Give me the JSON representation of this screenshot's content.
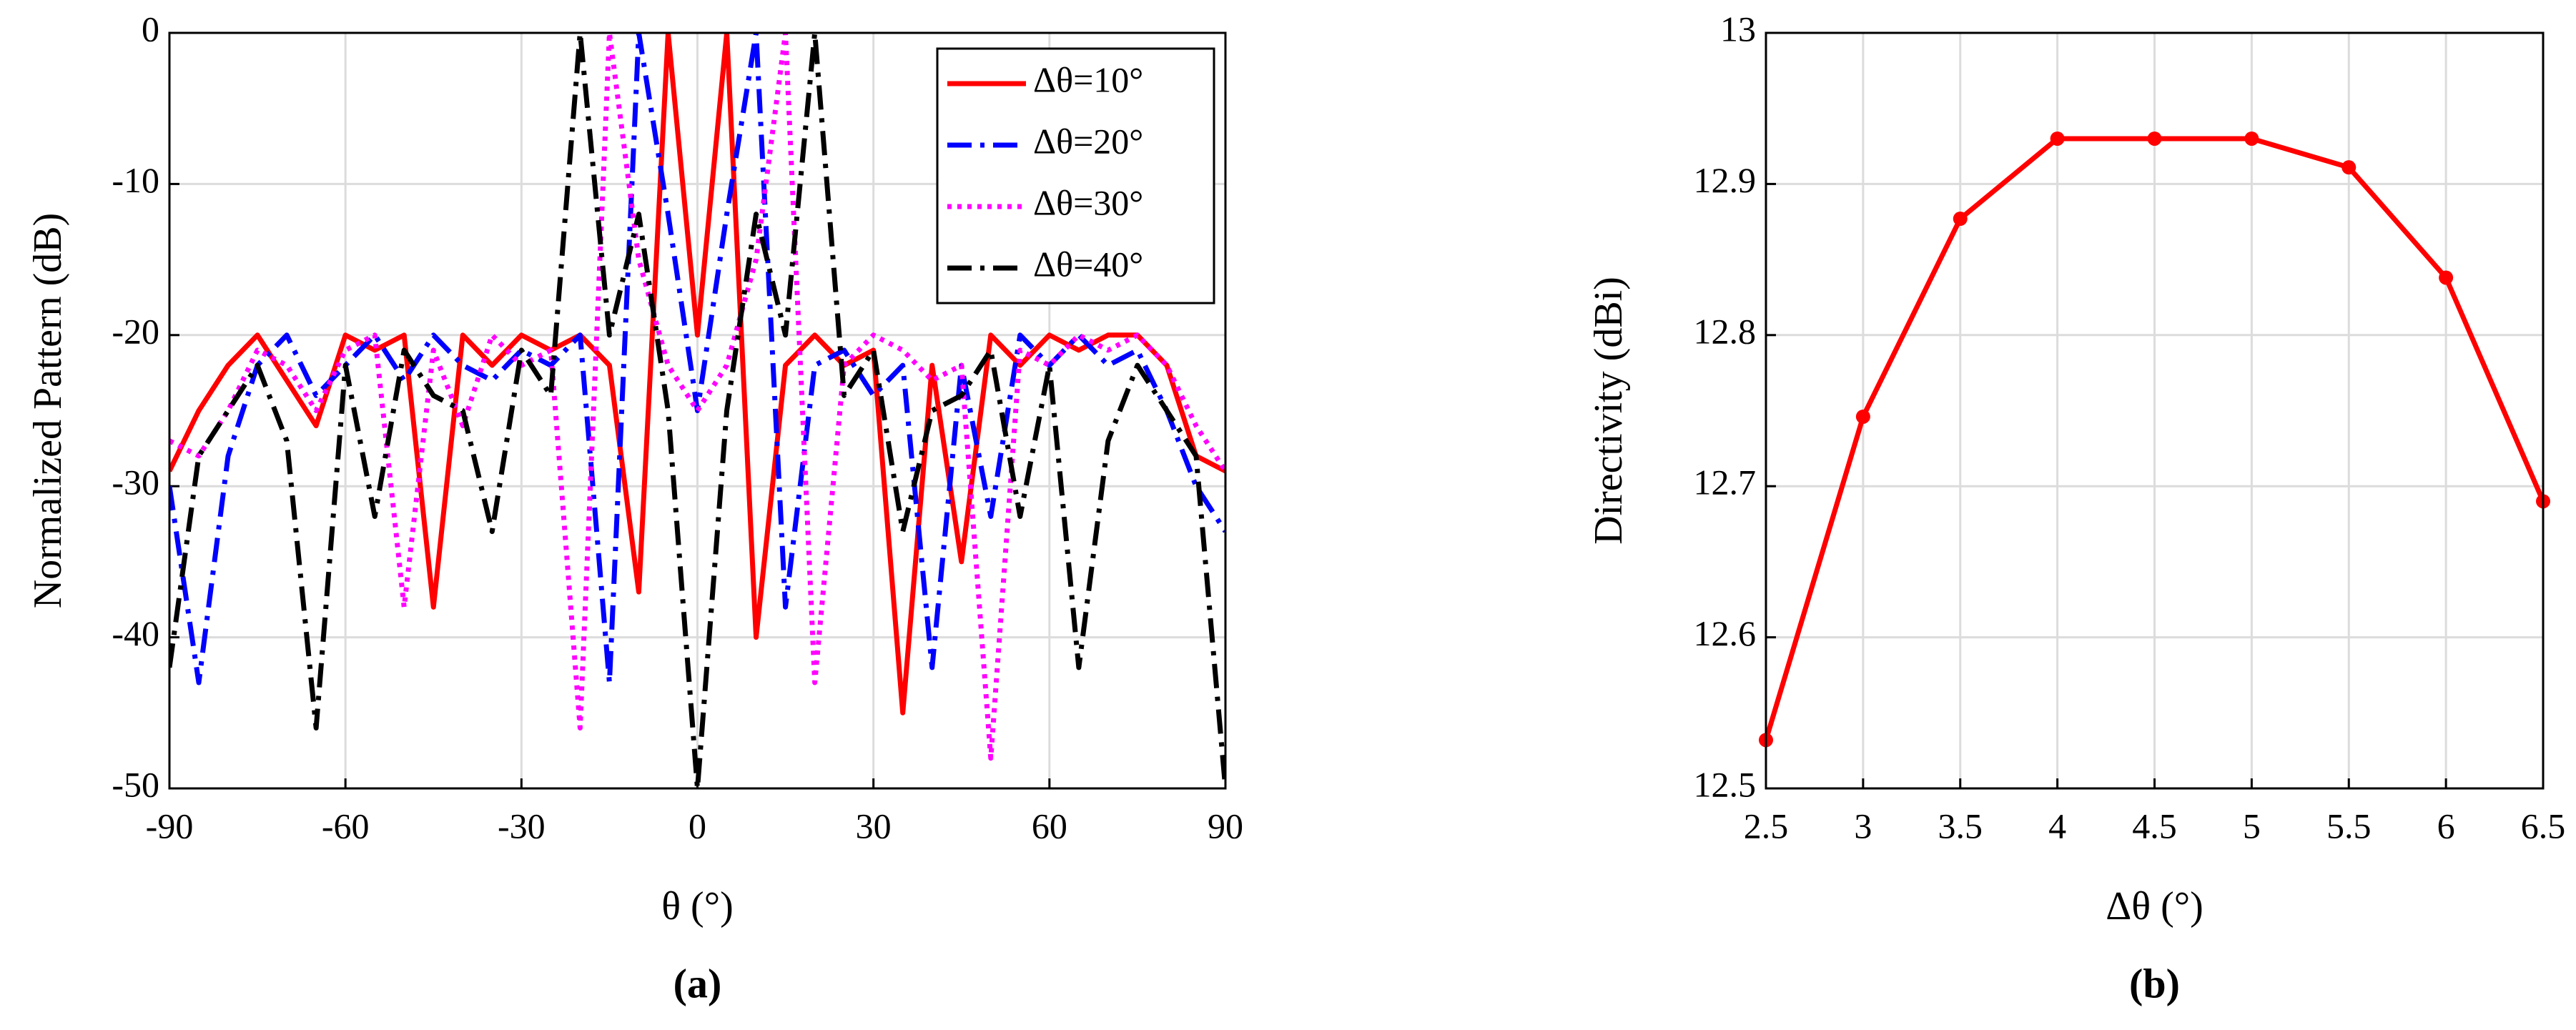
{
  "chart_data": [
    {
      "type": "line",
      "caption": "(a)",
      "x_label": "θ (°)",
      "y_label": "Normalized Pattern (dB)",
      "x": [
        -90,
        -85,
        -80,
        -75,
        -70,
        -65,
        -60,
        -55,
        -50,
        -45,
        -40,
        -35,
        -30,
        -25,
        -20,
        -15,
        -10,
        -5,
        0,
        5,
        10,
        15,
        20,
        25,
        30,
        35,
        40,
        45,
        50,
        55,
        60,
        65,
        70,
        75,
        80,
        85,
        90
      ],
      "series": [
        {
          "name": "Δθ=10°",
          "color": "#ff0000",
          "linestyle": "solid",
          "values": [
            -29,
            -25,
            -22,
            -20,
            -23,
            -26,
            -20,
            -21,
            -20,
            -38,
            -20,
            -22,
            -20,
            -21,
            -20,
            -22,
            -37,
            0,
            -20,
            0,
            -40,
            -22,
            -20,
            -22,
            -21,
            -45,
            -22,
            -35,
            -20,
            -22,
            -20,
            -21,
            -20,
            -20,
            -22,
            -28,
            -29
          ]
        },
        {
          "name": "Δθ=20°",
          "color": "#0000ff",
          "linestyle": "dashdot",
          "values": [
            -30,
            -43,
            -28,
            -22,
            -20,
            -24,
            -22,
            -20,
            -23,
            -20,
            -22,
            -23,
            -21,
            -22,
            -20,
            -43,
            0,
            -12,
            -25,
            -12,
            0,
            -38,
            -22,
            -21,
            -24,
            -22,
            -42,
            -22,
            -32,
            -20,
            -22,
            -20,
            -22,
            -21,
            -25,
            -30,
            -33
          ]
        },
        {
          "name": "Δθ=30°",
          "color": "#ff00ff",
          "linestyle": "dotted",
          "values": [
            -27,
            -28,
            -25,
            -21,
            -22,
            -25,
            -21,
            -20,
            -38,
            -21,
            -26,
            -20,
            -22,
            -21,
            -46,
            0,
            -15,
            -22,
            -25,
            -22,
            -15,
            0,
            -43,
            -22,
            -20,
            -21,
            -23,
            -22,
            -48,
            -21,
            -22,
            -20,
            -21,
            -20,
            -22,
            -26,
            -29
          ]
        },
        {
          "name": "Δθ=40°",
          "color": "#000000",
          "linestyle": "dashdot",
          "values": [
            -42,
            -28,
            -25,
            -22,
            -27,
            -46,
            -22,
            -32,
            -21,
            -24,
            -25,
            -33,
            -21,
            -24,
            0,
            -20,
            -12,
            -25,
            -50,
            -25,
            -12,
            -20,
            0,
            -24,
            -21,
            -33,
            -25,
            -24,
            -21,
            -32,
            -22,
            -42,
            -27,
            -22,
            -25,
            -28,
            -50
          ]
        }
      ],
      "xlim": [
        -90,
        90
      ],
      "xticks": [
        -90,
        -60,
        -30,
        0,
        30,
        60,
        90
      ],
      "ylim": [
        -50,
        0
      ],
      "yticks": [
        -50,
        -40,
        -30,
        -20,
        -10,
        0
      ],
      "grid": true,
      "legend": "upper right"
    },
    {
      "type": "line",
      "caption": "(b)",
      "x_label": "Δθ (°)",
      "y_label": "Directivity (dBi)",
      "x": [
        2.5,
        3,
        3.5,
        4,
        4.5,
        5,
        5.5,
        6,
        6.5
      ],
      "series": [
        {
          "color": "#ff0000",
          "linestyle": "solid",
          "markers": true,
          "values": [
            12.532,
            12.746,
            12.877,
            12.93,
            12.93,
            12.93,
            12.911,
            12.838,
            12.69
          ]
        }
      ],
      "xlim": [
        2.5,
        6.5
      ],
      "xticks": [
        2.5,
        3,
        3.5,
        4,
        4.5,
        5,
        5.5,
        6,
        6.5
      ],
      "ylim": [
        12.5,
        13
      ],
      "yticks": [
        12.5,
        12.6,
        12.7,
        12.8,
        12.9,
        13
      ],
      "grid": true
    }
  ]
}
